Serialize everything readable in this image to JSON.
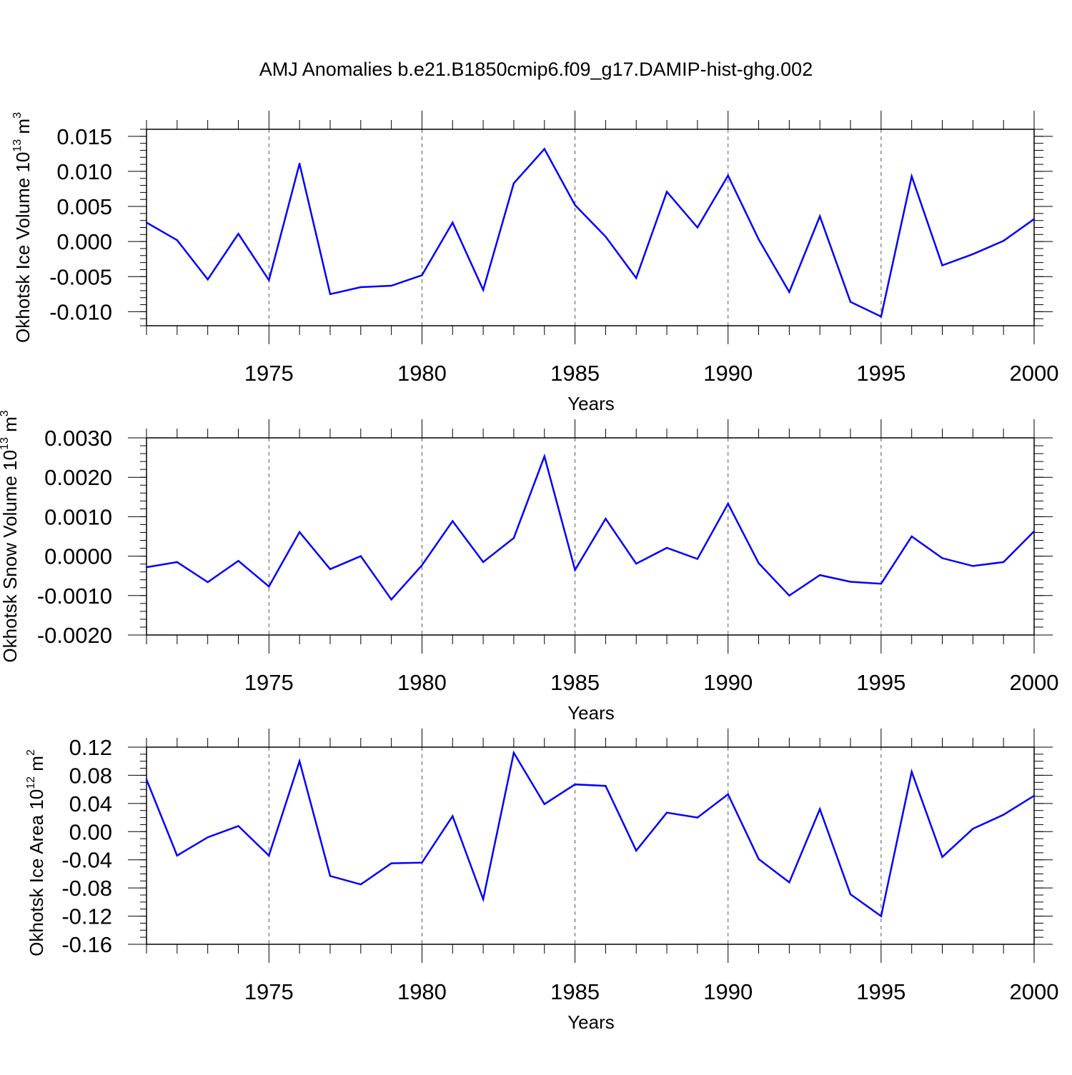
{
  "chart_data": {
    "title": "AMJ Anomalies b.e21.B1850cmip6.f09_g17.DAMIP-hist-ghg.002",
    "line_color": "#0000ff",
    "panels": [
      {
        "type": "line",
        "ylabel": {
          "base": "Okhotsk Ice Volume 10",
          "exp": "13",
          "unit": " m",
          "unit_exp": "3"
        },
        "xlabel": "Years",
        "xlim": [
          1971,
          2000
        ],
        "ylim": [
          -0.012,
          0.016
        ],
        "y_ticks": [
          "-0.010",
          "-0.005",
          "0.000",
          "0.005",
          "0.010",
          "0.015"
        ],
        "y_tick_values": [
          -0.01,
          -0.005,
          0.0,
          0.005,
          0.01,
          0.015
        ],
        "y_minor_step": 0.001,
        "x_ticks": [
          "1975",
          "1980",
          "1985",
          "1990",
          "1995",
          "2000"
        ],
        "x_tick_values": [
          1975,
          1980,
          1985,
          1990,
          1995,
          2000
        ],
        "x": [
          1971,
          1972,
          1973,
          1974,
          1975,
          1976,
          1977,
          1978,
          1979,
          1980,
          1981,
          1982,
          1983,
          1984,
          1985,
          1986,
          1987,
          1988,
          1989,
          1990,
          1991,
          1992,
          1993,
          1994,
          1995,
          1996,
          1997,
          1998,
          1999,
          2000
        ],
        "values": [
          0.0027,
          0.0002,
          -0.0054,
          0.0011,
          -0.0055,
          0.0111,
          -0.0075,
          -0.0065,
          -0.0063,
          -0.0048,
          0.0027,
          -0.0069,
          0.0083,
          0.0132,
          0.0052,
          0.0007,
          -0.0052,
          0.0071,
          0.002,
          0.0094,
          0.0003,
          -0.0072,
          0.0036,
          -0.0086,
          -0.0107,
          0.0093,
          -0.0034,
          -0.0018,
          0.0001,
          0.0032
        ]
      },
      {
        "type": "line",
        "ylabel": {
          "base": "Okhotsk Snow Volume 10",
          "exp": "13",
          "unit": " m",
          "unit_exp": "3"
        },
        "xlabel": "Years",
        "xlim": [
          1971,
          2000
        ],
        "ylim": [
          -0.002,
          0.003
        ],
        "y_ticks": [
          "-0.0020",
          "-0.0010",
          "0.0000",
          "0.0010",
          "0.0020",
          "0.0030"
        ],
        "y_tick_values": [
          -0.002,
          -0.001,
          0.0,
          0.001,
          0.002,
          0.003
        ],
        "y_minor_step": 0.0002,
        "x_ticks": [
          "1975",
          "1980",
          "1985",
          "1990",
          "1995",
          "2000"
        ],
        "x_tick_values": [
          1975,
          1980,
          1985,
          1990,
          1995,
          2000
        ],
        "x": [
          1971,
          1972,
          1973,
          1974,
          1975,
          1976,
          1977,
          1978,
          1979,
          1980,
          1981,
          1982,
          1983,
          1984,
          1985,
          1986,
          1987,
          1988,
          1989,
          1990,
          1991,
          1992,
          1993,
          1994,
          1995,
          1996,
          1997,
          1998,
          1999,
          2000
        ],
        "values": [
          -0.00028,
          -0.00015,
          -0.00066,
          -0.00012,
          -0.00077,
          0.00061,
          -0.00033,
          0.0,
          -0.0011,
          -0.00023,
          0.00089,
          -0.00015,
          0.00046,
          0.00253,
          -0.00035,
          0.00095,
          -0.00019,
          0.00021,
          -7e-05,
          0.00133,
          -0.00018,
          -0.001,
          -0.00048,
          -0.00065,
          -0.0007,
          0.0005,
          -5e-05,
          -0.00025,
          -0.00015,
          0.00063
        ]
      },
      {
        "type": "line",
        "ylabel": {
          "base": "Okhotsk Ice Area 10",
          "exp": "12",
          "unit": " m",
          "unit_exp": "2"
        },
        "xlabel": "Years",
        "xlim": [
          1971,
          2000
        ],
        "ylim": [
          -0.16,
          0.12
        ],
        "y_ticks": [
          "-0.16",
          "-0.12",
          "-0.08",
          "-0.04",
          "0.00",
          "0.04",
          "0.08",
          "0.12"
        ],
        "y_tick_values": [
          -0.16,
          -0.12,
          -0.08,
          -0.04,
          0.0,
          0.04,
          0.08,
          0.12
        ],
        "y_minor_step": 0.01,
        "x_ticks": [
          "1975",
          "1980",
          "1985",
          "1990",
          "1995",
          "2000"
        ],
        "x_tick_values": [
          1975,
          1980,
          1985,
          1990,
          1995,
          2000
        ],
        "x": [
          1971,
          1972,
          1973,
          1974,
          1975,
          1976,
          1977,
          1978,
          1979,
          1980,
          1981,
          1982,
          1983,
          1984,
          1985,
          1986,
          1987,
          1988,
          1989,
          1990,
          1991,
          1992,
          1993,
          1994,
          1995,
          1996,
          1997,
          1998,
          1999,
          2000
        ],
        "values": [
          0.074,
          -0.034,
          -0.008,
          0.008,
          -0.034,
          0.1,
          -0.063,
          -0.075,
          -0.045,
          -0.044,
          0.022,
          -0.096,
          0.112,
          0.039,
          0.067,
          0.065,
          -0.027,
          0.027,
          0.02,
          0.053,
          -0.039,
          -0.072,
          0.032,
          -0.089,
          -0.12,
          0.085,
          -0.036,
          0.004,
          0.024,
          0.051
        ]
      }
    ]
  }
}
